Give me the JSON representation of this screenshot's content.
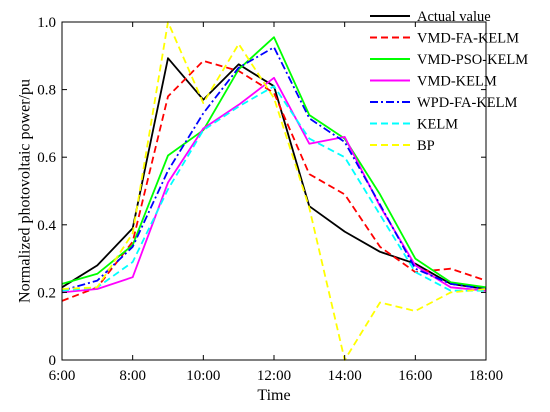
{
  "chart_data": {
    "type": "line",
    "xlabel": "Time",
    "ylabel": "Normalized photovoltaic power/pu",
    "x": [
      6,
      7,
      8,
      9,
      10,
      11,
      12,
      13,
      14,
      15,
      16,
      17,
      18
    ],
    "xlim": [
      6,
      18
    ],
    "ylim": [
      0,
      1
    ],
    "xticks": [
      6,
      8,
      10,
      12,
      14,
      16,
      18
    ],
    "xtick_labels": [
      "6:00",
      "8:00",
      "10:00",
      "12:00",
      "14:00",
      "16:00",
      "18:00"
    ],
    "yticks": [
      0,
      0.2,
      0.4,
      0.6,
      0.8,
      1
    ],
    "ytick_labels": [
      "0",
      "0.2",
      "0.4",
      "0.6",
      "0.8",
      "1.0"
    ],
    "grid": false,
    "legend_position": "top-right",
    "series": [
      {
        "name": "Actual value",
        "color": "#000000",
        "dash": "solid",
        "values": [
          0.215,
          0.28,
          0.39,
          0.893,
          0.77,
          0.875,
          0.81,
          0.455,
          0.38,
          0.32,
          0.285,
          0.225,
          0.21
        ]
      },
      {
        "name": "VMD-FA-KELM",
        "color": "#ff0000",
        "dash": "dashed",
        "values": [
          0.175,
          0.215,
          0.35,
          0.78,
          0.885,
          0.855,
          0.79,
          0.55,
          0.49,
          0.335,
          0.26,
          0.27,
          0.235
        ]
      },
      {
        "name": "VMD-PSO-KELM",
        "color": "#00ff00",
        "dash": "solid",
        "values": [
          0.225,
          0.255,
          0.34,
          0.605,
          0.68,
          0.86,
          0.955,
          0.725,
          0.655,
          0.49,
          0.3,
          0.23,
          0.215
        ]
      },
      {
        "name": "VMD-KELM",
        "color": "#ff00ff",
        "dash": "solid",
        "values": [
          0.2,
          0.21,
          0.245,
          0.525,
          0.685,
          0.755,
          0.835,
          0.64,
          0.66,
          0.455,
          0.28,
          0.215,
          0.205
        ]
      },
      {
        "name": "WPD-FA-KELM",
        "color": "#0000ff",
        "dash": "dashdot",
        "values": [
          0.205,
          0.235,
          0.335,
          0.56,
          0.73,
          0.865,
          0.925,
          0.715,
          0.645,
          0.46,
          0.27,
          0.225,
          0.21
        ]
      },
      {
        "name": "KELM",
        "color": "#00ffff",
        "dash": "dashed",
        "values": [
          0.205,
          0.215,
          0.29,
          0.505,
          0.68,
          0.75,
          0.81,
          0.655,
          0.6,
          0.43,
          0.26,
          0.205,
          0.205
        ]
      },
      {
        "name": "BP",
        "color": "#ffff00",
        "dash": "dashed",
        "values": [
          0.21,
          0.215,
          0.375,
          1.0,
          0.76,
          0.935,
          0.775,
          0.45,
          0.0,
          0.17,
          0.145,
          0.2,
          0.21
        ]
      }
    ]
  }
}
